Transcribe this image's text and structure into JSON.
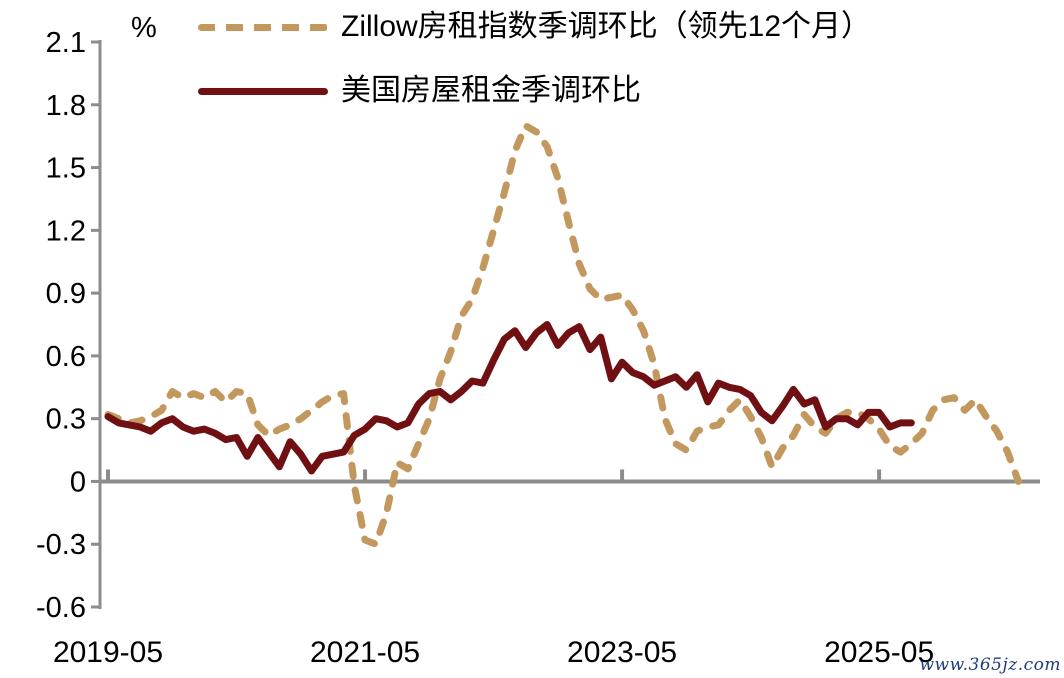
{
  "watermark": "www.365jz.com",
  "chart_data": {
    "type": "line",
    "title": "",
    "unit_label": "%",
    "frequency": "monthly",
    "x_start": "2019-05",
    "x_tick_labels": [
      "2019-05",
      "2021-05",
      "2023-05",
      "2025-05"
    ],
    "x_tick_months": [
      0,
      24,
      48,
      72
    ],
    "y_tick_labels": [
      "2.1",
      "1.8",
      "1.5",
      "1.2",
      "0.9",
      "0.6",
      "0.3",
      "0",
      "-0.3",
      "-0.6"
    ],
    "y_ticks": [
      2.1,
      1.8,
      1.5,
      1.2,
      0.9,
      0.6,
      0.3,
      0,
      -0.3,
      -0.6
    ],
    "ylim": [
      -0.6,
      2.1
    ],
    "grid": false,
    "legend_position": "top-left",
    "axis_color": "#8C8C8C",
    "text_color": "#000000",
    "zero_axis_line": true,
    "series": [
      {
        "name": "Zillow房租指数季调环比（领先12个月）",
        "style": "dashed",
        "color": "#C3985F",
        "start_month": 0,
        "values": [
          0.32,
          0.3,
          0.28,
          0.29,
          0.31,
          0.34,
          0.43,
          0.4,
          0.42,
          0.4,
          0.43,
          0.38,
          0.43,
          0.42,
          0.27,
          0.22,
          0.25,
          0.27,
          0.3,
          0.34,
          0.38,
          0.41,
          0.42,
          -0.02,
          -0.28,
          -0.3,
          -0.15,
          0.09,
          0.06,
          0.18,
          0.3,
          0.49,
          0.62,
          0.79,
          0.87,
          1.02,
          1.2,
          1.38,
          1.58,
          1.7,
          1.67,
          1.6,
          1.45,
          1.24,
          1.04,
          0.92,
          0.87,
          0.88,
          0.89,
          0.82,
          0.72,
          0.56,
          0.3,
          0.18,
          0.15,
          0.24,
          0.26,
          0.27,
          0.34,
          0.39,
          0.31,
          0.21,
          0.07,
          0.16,
          0.22,
          0.32,
          0.26,
          0.23,
          0.3,
          0.33,
          0.33,
          0.3,
          0.25,
          0.17,
          0.14,
          0.18,
          0.23,
          0.34,
          0.39,
          0.4,
          0.34,
          0.39,
          0.31,
          0.24,
          0.14,
          0.0
        ]
      },
      {
        "name": "美国房屋租金季调环比",
        "style": "solid",
        "color": "#701012",
        "start_month": 0,
        "values": [
          0.31,
          0.28,
          0.27,
          0.26,
          0.24,
          0.28,
          0.3,
          0.26,
          0.24,
          0.25,
          0.23,
          0.2,
          0.21,
          0.12,
          0.21,
          0.14,
          0.07,
          0.19,
          0.13,
          0.05,
          0.12,
          0.13,
          0.14,
          0.22,
          0.25,
          0.3,
          0.29,
          0.26,
          0.28,
          0.37,
          0.42,
          0.43,
          0.39,
          0.43,
          0.48,
          0.47,
          0.58,
          0.68,
          0.72,
          0.64,
          0.71,
          0.75,
          0.65,
          0.71,
          0.74,
          0.63,
          0.69,
          0.49,
          0.57,
          0.52,
          0.5,
          0.46,
          0.48,
          0.5,
          0.45,
          0.51,
          0.38,
          0.47,
          0.45,
          0.44,
          0.41,
          0.33,
          0.29,
          0.36,
          0.44,
          0.37,
          0.39,
          0.26,
          0.3,
          0.3,
          0.27,
          0.33,
          0.33,
          0.26,
          0.28,
          0.28
        ]
      }
    ]
  }
}
